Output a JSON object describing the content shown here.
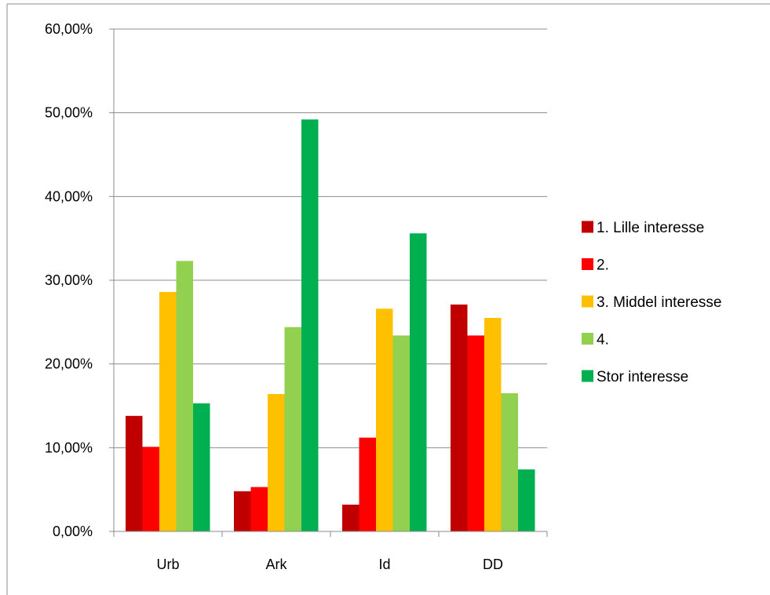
{
  "chart_data": {
    "type": "bar",
    "title": "",
    "xlabel": "",
    "ylabel": "",
    "categories": [
      "Urb",
      "Ark",
      "Id",
      "DD"
    ],
    "ylim": [
      0,
      60
    ],
    "y_ticks": [
      0,
      10,
      20,
      30,
      40,
      50,
      60
    ],
    "y_tick_labels": [
      "0,00%",
      "10,00%",
      "20,00%",
      "30,00%",
      "40,00%",
      "50,00%",
      "60,00%"
    ],
    "grid": "horizontal",
    "legend_position": "right",
    "series": [
      {
        "name": "1. Lille interesse",
        "color": "#c00000",
        "values": [
          13.8,
          4.8,
          3.2,
          27.1
        ]
      },
      {
        "name": "2.",
        "color": "#ff0000",
        "values": [
          10.1,
          5.3,
          11.2,
          23.4
        ]
      },
      {
        "name": "3. Middel interesse",
        "color": "#ffc000",
        "values": [
          28.6,
          16.4,
          26.6,
          25.5
        ]
      },
      {
        "name": "4.",
        "color": "#92d050",
        "values": [
          32.3,
          24.4,
          23.4,
          16.5
        ]
      },
      {
        "name": "Stor interesse",
        "color": "#00b050",
        "values": [
          15.3,
          49.2,
          35.6,
          7.4
        ]
      }
    ]
  }
}
